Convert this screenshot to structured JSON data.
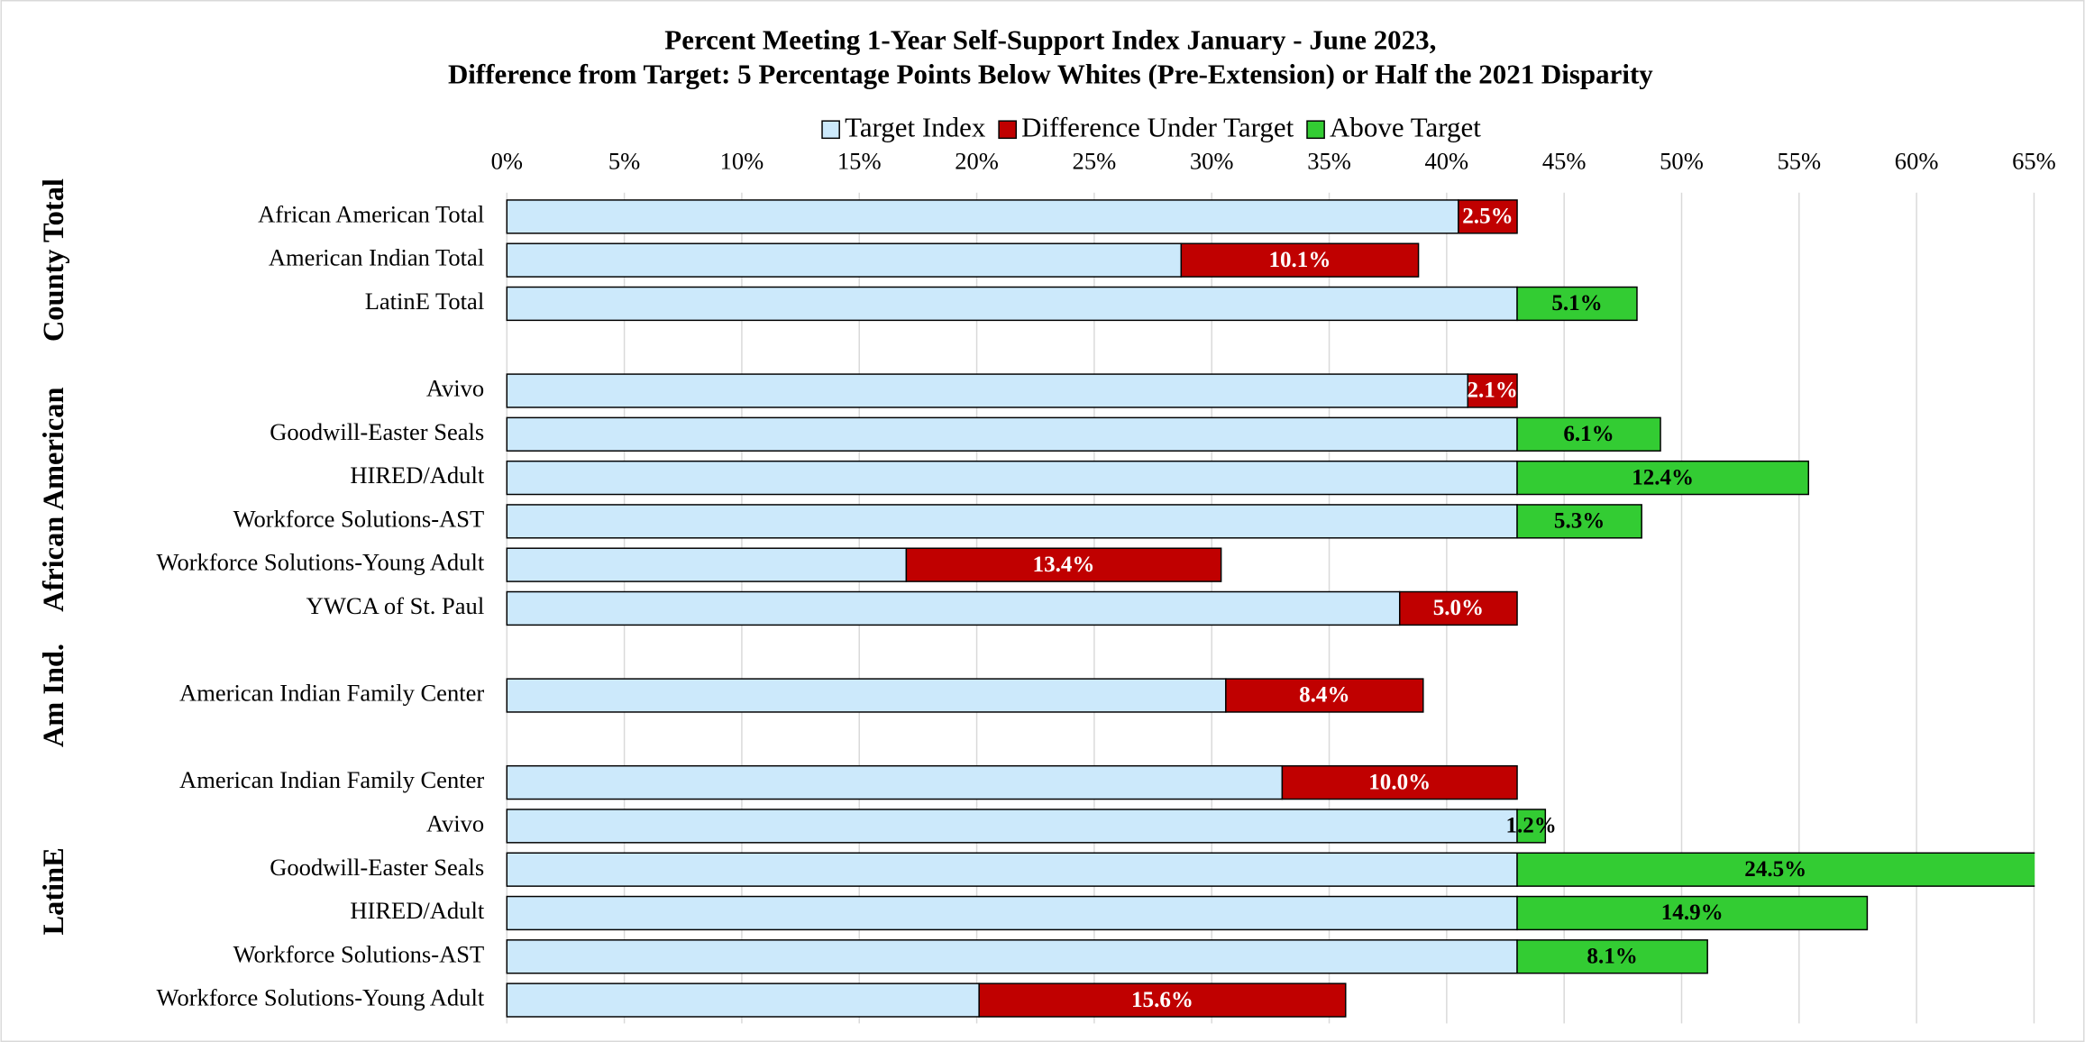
{
  "chart_data": {
    "type": "stacked-bar-horizontal",
    "title": "Percent Meeting 1-Year Self-Support Index January - June 2023,",
    "subtitle": "Difference from Target: 5 Percentage Points Below Whites (Pre-Extension) or Half the 2021 Disparity",
    "categories": [
      "African American Total",
      "American Indian Total",
      "LatinE Total",
      null,
      "Avivo",
      "Goodwill-Easter Seals",
      "HIRED/Adult",
      "Workforce Solutions-AST",
      "Workforce Solutions-Young Adult",
      "YWCA of St. Paul",
      null,
      "American Indian Family Center",
      null,
      "American Indian Family Center",
      "Avivo",
      "Goodwill-Easter Seals",
      "HIRED/Adult",
      "Workforce Solutions-AST",
      "Workforce Solutions-Young Adult"
    ],
    "groups": [
      {
        "name": "County Total",
        "span": [
          0,
          2
        ]
      },
      {
        "name": "African American",
        "span": [
          4,
          9
        ]
      },
      {
        "name": "Am Ind.",
        "span": [
          11,
          11
        ]
      },
      {
        "name": "LatinE",
        "span": [
          13,
          18
        ]
      }
    ],
    "series": [
      {
        "name": "Target Index",
        "color": "#cce9fb",
        "values": [
          40.5,
          28.7,
          43.0,
          null,
          40.9,
          43.0,
          43.0,
          43.0,
          17.0,
          38.0,
          null,
          30.6,
          null,
          33.0,
          43.0,
          43.0,
          43.0,
          43.0,
          20.1
        ]
      },
      {
        "name": "Difference Under Target",
        "color": "#c00000",
        "label_color": "#ffffff",
        "values": [
          2.5,
          10.1,
          null,
          null,
          2.1,
          null,
          null,
          null,
          13.4,
          5.0,
          null,
          8.4,
          null,
          10.0,
          null,
          null,
          null,
          null,
          15.6
        ],
        "value_labels": [
          "2.5%",
          "10.1%",
          null,
          null,
          "2.1%",
          null,
          null,
          null,
          "13.4%",
          "5.0%",
          null,
          "8.4%",
          null,
          "10.0%",
          null,
          null,
          null,
          null,
          "15.6%"
        ]
      },
      {
        "name": "Above Target",
        "color": "#33cc33",
        "label_color": "#000000",
        "values": [
          null,
          null,
          5.1,
          null,
          null,
          6.1,
          12.4,
          5.3,
          null,
          null,
          null,
          null,
          null,
          null,
          1.2,
          24.5,
          14.9,
          8.1,
          null
        ],
        "value_labels": [
          null,
          null,
          "5.1%",
          null,
          null,
          "6.1%",
          "12.4%",
          "5.3%",
          null,
          null,
          null,
          null,
          null,
          null,
          "1.2%",
          "24.5%",
          "14.9%",
          "8.1%",
          null
        ]
      }
    ],
    "xlim": [
      0,
      65
    ],
    "xticks": [
      {
        "value": 0,
        "label": "0%"
      },
      {
        "value": 5,
        "label": "5%"
      },
      {
        "value": 10,
        "label": "10%"
      },
      {
        "value": 15,
        "label": "15%"
      },
      {
        "value": 20,
        "label": "20%"
      },
      {
        "value": 25,
        "label": "25%"
      },
      {
        "value": 30,
        "label": "30%"
      },
      {
        "value": 35,
        "label": "35%"
      },
      {
        "value": 40,
        "label": "40%"
      },
      {
        "value": 45,
        "label": "45%"
      },
      {
        "value": 50,
        "label": "50%"
      },
      {
        "value": 55,
        "label": "55%"
      },
      {
        "value": 60,
        "label": "60%"
      },
      {
        "value": 65,
        "label": "65%"
      }
    ],
    "grid": true,
    "legend": "top"
  }
}
